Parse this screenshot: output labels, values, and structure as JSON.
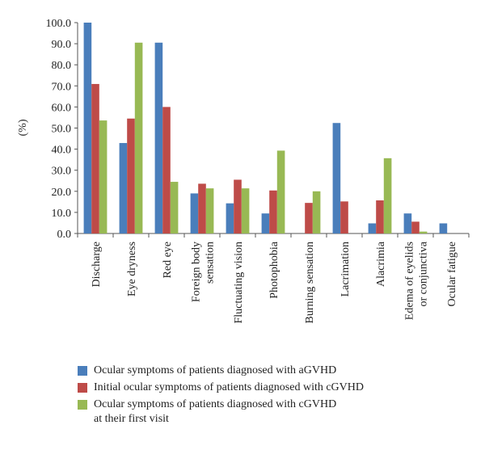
{
  "chart_data": {
    "type": "bar",
    "ylabel": "(%)",
    "ylim": [
      0,
      100
    ],
    "yticks": [
      "0.0",
      "10.0",
      "20.0",
      "30.0",
      "40.0",
      "50.0",
      "60.0",
      "70.0",
      "80.0",
      "90.0",
      "100.0"
    ],
    "grid": false,
    "legend_position": "bottom",
    "categories": [
      "Discharge",
      "Eye dryness",
      "Red eye",
      "Foreign body\nsensation",
      "Fluctuating vision",
      "Photophobia",
      "Burning sensation",
      "Lacrimation",
      "Alacrimia",
      "Edema of eyelids\nor conjunctiva",
      "Ocular fatigue"
    ],
    "series": [
      {
        "name": "Ocular symptoms of patients diagnosed with aGVHD",
        "color": "#4a7ebb",
        "values": [
          100,
          42.9,
          90.5,
          19,
          14.3,
          9.5,
          0,
          52.4,
          4.8,
          9.5,
          4.8
        ]
      },
      {
        "name": "Initial ocular symptoms of patients diagnosed with cGVHD",
        "color": "#be4b48",
        "values": [
          70.9,
          54.5,
          60,
          23.6,
          25.5,
          20.4,
          14.5,
          15.2,
          15.7,
          5.6,
          0
        ]
      },
      {
        "name": "Ocular symptoms of patients diagnosed with cGVHD\nat their first visit",
        "color": "#98b954",
        "values": [
          53.6,
          90.5,
          24.5,
          21.4,
          21.4,
          39.3,
          20,
          0,
          35.7,
          0.9,
          0
        ]
      }
    ]
  }
}
